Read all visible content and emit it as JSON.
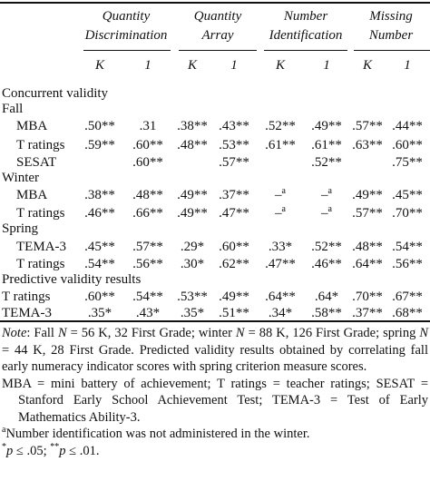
{
  "groups": [
    {
      "line1": "Quantity",
      "line2": "Discrimination"
    },
    {
      "line1": "Quantity",
      "line2": "Array"
    },
    {
      "line1": "Number",
      "line2": "Identification"
    },
    {
      "line1": "Missing",
      "line2": "Number"
    }
  ],
  "subheaders": [
    "K",
    "1",
    "K",
    "1",
    "K",
    "1",
    "K",
    "1"
  ],
  "sections": {
    "concurrent": "Concurrent validity",
    "fall": "Fall",
    "winter": "Winter",
    "spring": "Spring",
    "predictive": "Predictive validity results"
  },
  "rows": [
    {
      "label": "MBA",
      "cells": [
        ".50**",
        ".31",
        ".38**",
        ".43**",
        ".52**",
        ".49**",
        ".57**",
        ".44**"
      ]
    },
    {
      "label": "T ratings",
      "cells": [
        ".59**",
        ".60**",
        ".48**",
        ".53**",
        ".61**",
        ".61**",
        ".63**",
        ".60**"
      ]
    },
    {
      "label": "SESAT",
      "cells": [
        "",
        ".60**",
        "",
        ".57**",
        "",
        ".52**",
        "",
        ".75**"
      ]
    },
    {
      "label": "MBA",
      "cells": [
        ".38**",
        ".48**",
        ".49**",
        ".37**",
        "–",
        "–",
        ".49**",
        ".45**"
      ]
    },
    {
      "label": "T ratings",
      "cells": [
        ".46**",
        ".66**",
        ".49**",
        ".47**",
        "–",
        "–",
        ".57**",
        ".70**"
      ]
    },
    {
      "label": "TEMA-3",
      "cells": [
        ".45**",
        ".57**",
        ".29*",
        ".60**",
        ".33*",
        ".52**",
        ".48**",
        ".54**"
      ]
    },
    {
      "label": "T ratings",
      "cells": [
        ".54**",
        ".56**",
        ".30*",
        ".62**",
        ".47**",
        ".46**",
        ".64**",
        ".56**"
      ]
    },
    {
      "label": "T ratings",
      "cells": [
        ".60**",
        ".54**",
        ".53**",
        ".49**",
        ".64**",
        ".64*",
        ".70**",
        ".67**"
      ]
    },
    {
      "label": "TEMA-3",
      "cells": [
        ".35*",
        ".43*",
        ".35*",
        ".51**",
        ".34*",
        ".58**",
        ".37**",
        ".68**"
      ]
    }
  ],
  "footnote_marker": "a",
  "notes": {
    "note_label": "Note",
    "note_text_1": ": Fall ",
    "n_symbol": "N",
    "note_text_2": " = 56 K, 32 First Grade; winter ",
    "note_text_3": " = 88 K, 126 First Grade; spring ",
    "note_text_4": " = 44 K, 28 First Grade. Predicted validity results obtained by correlating fall early numeracy indicator scores with spring criterion measure scores.",
    "abbreviations": "MBA = mini battery of achievement; T ratings = teacher ratings; SESAT = Stanford Early School Achievement Test; TEMA-3 = Test of Early Mathematics Ability-3.",
    "footnote_a_text": "Number identification was not administered in the winter.",
    "sig_p": "p",
    "sig_1_prefix": "*",
    "sig_1_suffix": " ≤ .05; ",
    "sig_2_prefix": "**",
    "sig_2_suffix": " ≤ .01."
  }
}
